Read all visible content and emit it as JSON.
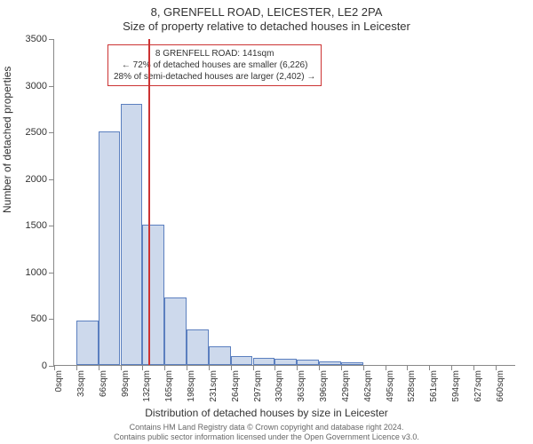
{
  "title_line1": "8, GRENFELL ROAD, LEICESTER, LE2 2PA",
  "title_line2": "Size of property relative to detached houses in Leicester",
  "ylabel": "Number of detached properties",
  "xlabel": "Distribution of detached houses by size in Leicester",
  "chart": {
    "type": "histogram",
    "background_color": "#ffffff",
    "axis_color": "#888888",
    "bar_fill": "#cdd9ec",
    "bar_border": "#5b7fbf",
    "bar_border_width": 1,
    "marker_color": "#cc3333",
    "marker_width": 2,
    "marker_x": 141,
    "ylim": [
      0,
      3500
    ],
    "ytick_step": 500,
    "yticks": [
      0,
      500,
      1000,
      1500,
      2000,
      2500,
      3000,
      3500
    ],
    "xlim": [
      0,
      691
    ],
    "xtick_step": 33,
    "xtick_count": 21,
    "xtick_suffix": "sqm",
    "bin_width": 33,
    "values": [
      0,
      480,
      2500,
      2800,
      1500,
      720,
      380,
      200,
      100,
      80,
      70,
      60,
      40,
      30,
      0,
      0,
      0,
      0,
      0,
      0,
      0
    ]
  },
  "annotation": {
    "line1": "8 GRENFELL ROAD: 141sqm",
    "line2": "← 72% of detached houses are smaller (6,226)",
    "line3": "28% of semi-detached houses are larger (2,402) →",
    "border_color": "#cc3333",
    "fontsize": 10
  },
  "footer": {
    "line1": "Contains HM Land Registry data © Crown copyright and database right 2024.",
    "line2": "Contains public sector information licensed under the Open Government Licence v3.0."
  }
}
